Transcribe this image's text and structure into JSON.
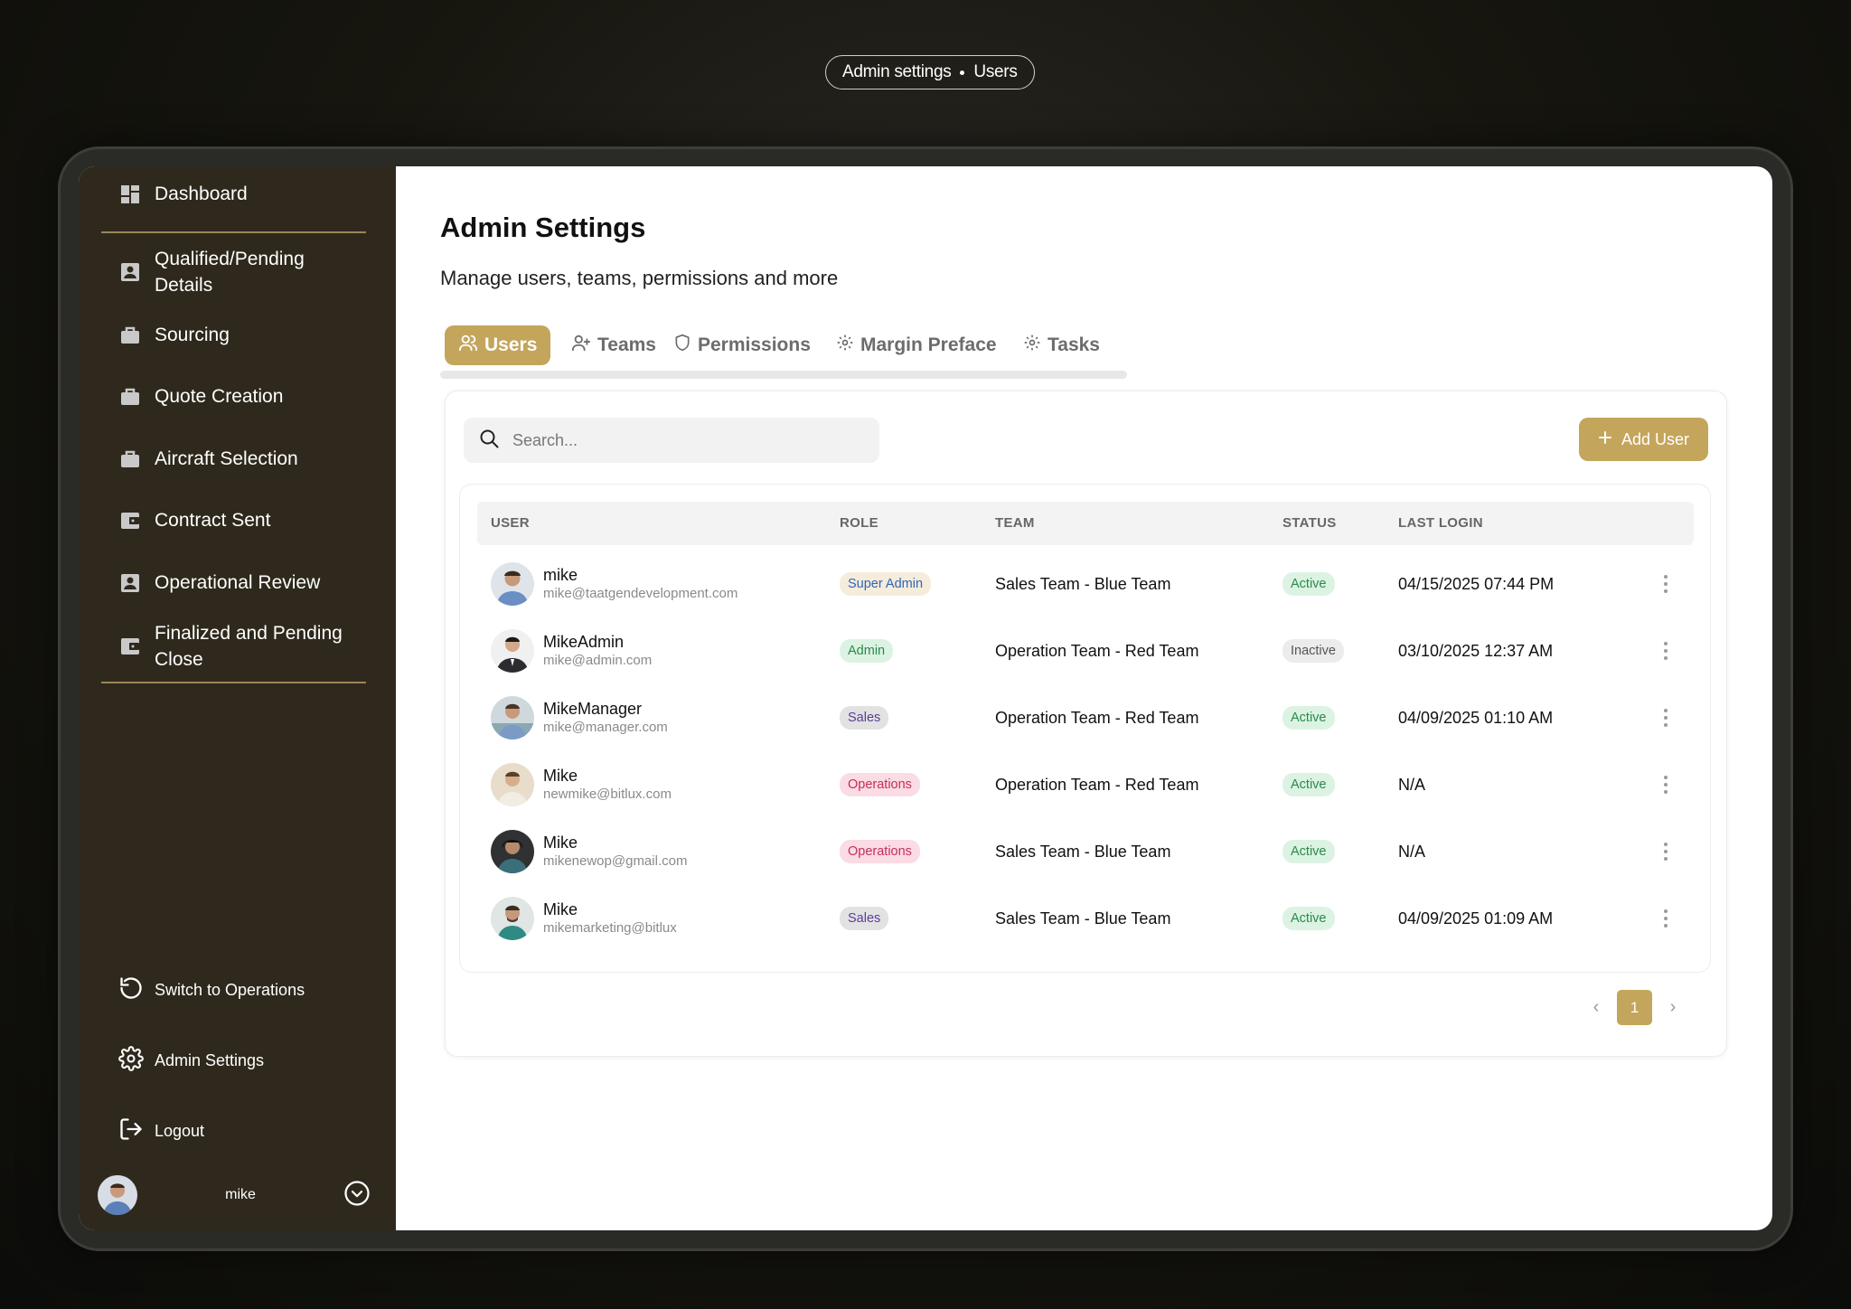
{
  "breadcrumb": {
    "section": "Admin settings",
    "page": "Users"
  },
  "sidebar": {
    "items": [
      {
        "label": "Dashboard",
        "icon": "dashboard-icon"
      },
      {
        "label": "Qualified/Pending\nDetails",
        "icon": "contact-card-icon"
      },
      {
        "label": "Sourcing",
        "icon": "briefcase-icon"
      },
      {
        "label": "Quote Creation",
        "icon": "briefcase-icon"
      },
      {
        "label": "Aircraft Selection",
        "icon": "briefcase-icon"
      },
      {
        "label": "Contract Sent",
        "icon": "wallet-icon"
      },
      {
        "label": "Operational Review",
        "icon": "contact-card-icon"
      },
      {
        "label": "Finalized and Pending\nClose",
        "icon": "wallet-icon"
      }
    ],
    "switch_label": "Switch to Operations",
    "admin_label": "Admin Settings",
    "logout_label": "Logout",
    "user_name": "mike"
  },
  "page": {
    "title": "Admin Settings",
    "subtitle": "Manage users, teams, permissions and more"
  },
  "tabs": [
    {
      "label": "Users",
      "icon": "users-icon",
      "active": true
    },
    {
      "label": "Teams",
      "icon": "user-plus-icon",
      "active": false
    },
    {
      "label": "Permissions",
      "icon": "shield-icon",
      "active": false
    },
    {
      "label": "Margin Preface",
      "icon": "gear-icon",
      "active": false
    },
    {
      "label": "Tasks",
      "icon": "gear-icon",
      "active": false
    }
  ],
  "search": {
    "placeholder": "Search..."
  },
  "add_user_label": "Add User",
  "table": {
    "columns": [
      "USER",
      "ROLE",
      "TEAM",
      "STATUS",
      "LAST LOGIN"
    ],
    "rows": [
      {
        "name": "mike",
        "email": "mike@taatgendevelopment.com",
        "role": "Super Admin",
        "team": "Sales Team - Blue Team",
        "status": "Active",
        "last_login": "04/15/2025 07:44 PM"
      },
      {
        "name": "MikeAdmin",
        "email": "mike@admin.com",
        "role": "Admin",
        "team": "Operation Team - Red Team",
        "status": "Inactive",
        "last_login": "03/10/2025 12:37 AM"
      },
      {
        "name": "MikeManager",
        "email": "mike@manager.com",
        "role": "Sales",
        "team": "Operation Team - Red Team",
        "status": "Active",
        "last_login": "04/09/2025 01:10 AM"
      },
      {
        "name": "Mike",
        "email": "newmike@bitlux.com",
        "role": "Operations",
        "team": "Operation Team - Red Team",
        "status": "Active",
        "last_login": "N/A"
      },
      {
        "name": "Mike",
        "email": "mikenewop@gmail.com",
        "role": "Operations",
        "team": "Sales Team - Blue Team",
        "status": "Active",
        "last_login": "N/A"
      },
      {
        "name": "Mike",
        "email": "mikemarketing@bitlux",
        "role": "Sales",
        "team": "Sales Team - Blue Team",
        "status": "Active",
        "last_login": "04/09/2025 01:09 AM"
      }
    ]
  },
  "pagination": {
    "current": "1"
  },
  "colors": {
    "accent": "#c4a55c",
    "sidebar_bg": "#2e291c",
    "role_super_admin": {
      "bg": "#f6ecdc",
      "fg": "#2f64b8"
    },
    "role_admin": {
      "bg": "#dcf3e3",
      "fg": "#2a8a4a"
    },
    "role_sales": {
      "bg": "#e2e2e2",
      "fg": "#5a3d9a"
    },
    "role_operations": {
      "bg": "#fbdbe4",
      "fg": "#c2305a"
    },
    "status_active": {
      "bg": "#dcf3e3",
      "fg": "#2a8a4a"
    },
    "status_inactive": {
      "bg": "#ececec",
      "fg": "#555555"
    }
  }
}
